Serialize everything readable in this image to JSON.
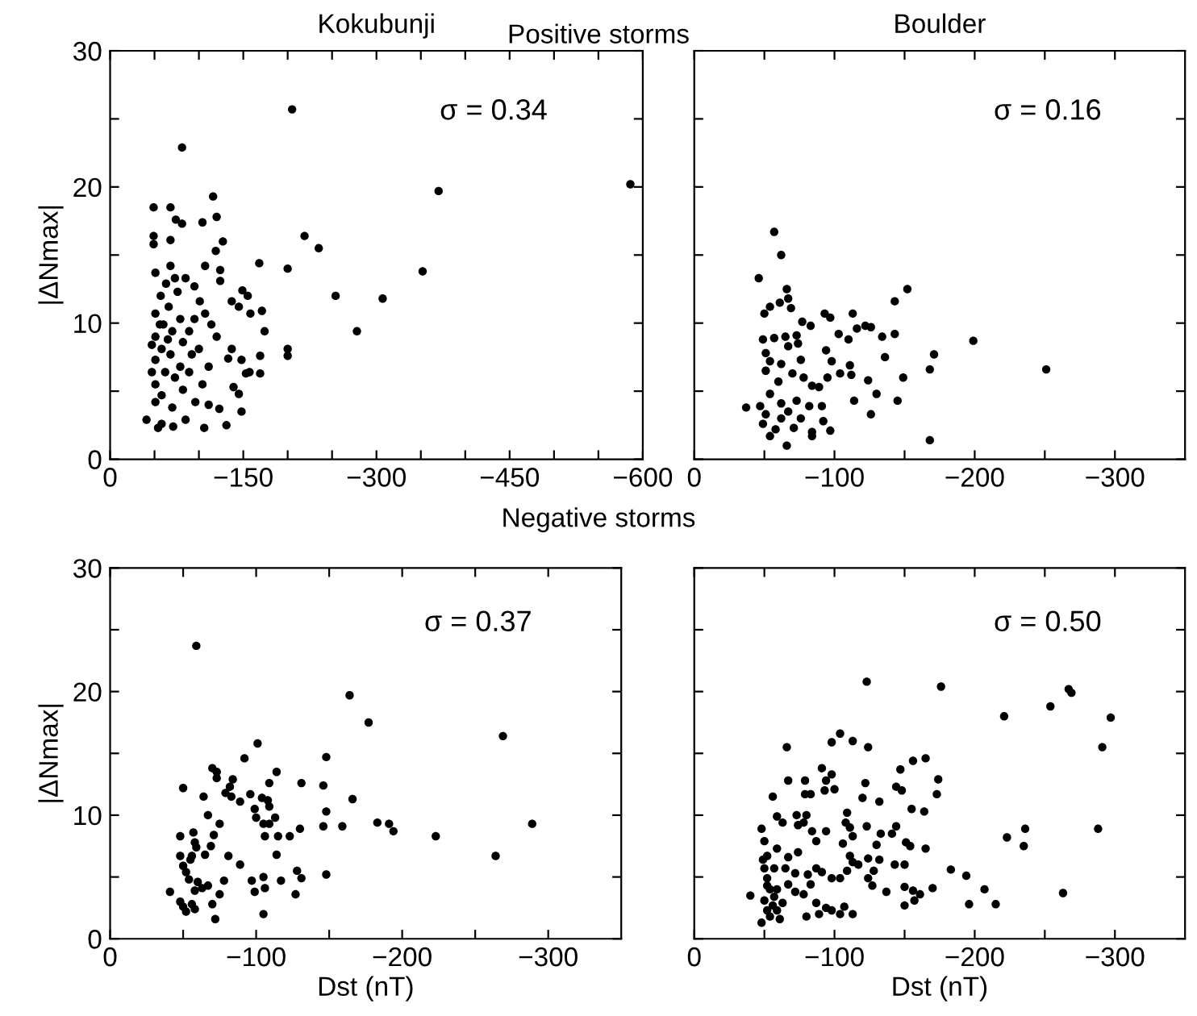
{
  "chart_data": [
    {
      "type": "scatter",
      "title": "Kokubunji",
      "subtitle": "Positive storms",
      "ylabel": "|ΔNmax|",
      "annotations": [
        "σ = 0.34"
      ],
      "marker": "circle",
      "grid": false,
      "legend": false,
      "xlim": [
        0,
        -600
      ],
      "xticks": [
        0,
        {
          "value": -50,
          "label": null
        },
        {
          "value": -100,
          "label": null
        },
        -150,
        {
          "value": -200,
          "label": null
        },
        {
          "value": -250,
          "label": null
        },
        -300,
        {
          "value": -350,
          "label": null
        },
        {
          "value": -400,
          "label": null
        },
        -450,
        {
          "value": -500,
          "label": null
        },
        {
          "value": -550,
          "label": null
        },
        -600
      ],
      "ylim": [
        0,
        30
      ],
      "yticks": [
        0,
        {
          "value": 5,
          "label": null
        },
        10,
        {
          "value": 15,
          "label": null
        },
        20,
        {
          "value": 25,
          "label": null
        },
        30
      ],
      "series": [
        {
          "color": "#000000",
          "x": [
            -205,
            -81,
            -116,
            -49,
            -68,
            -370,
            -586,
            -104,
            -74,
            -81,
            -120,
            -49,
            -49,
            -68,
            -219,
            -235,
            -127,
            -119,
            -168,
            -200,
            -352,
            -107,
            -68,
            -51,
            -254,
            -307,
            -278,
            -200,
            -200,
            -124,
            -124,
            -73,
            -85,
            -95,
            -149,
            -155,
            -137,
            -171,
            -158,
            -145,
            -174,
            -169,
            -169,
            -153,
            -157,
            -148,
            -148,
            -131,
            -106,
            -123,
            -111,
            -139,
            -145,
            -133,
            -137,
            -120,
            -114,
            -107,
            -101,
            -95,
            -89,
            -100,
            -111,
            -104,
            -96,
            -85,
            -71,
            -54,
            -41,
            -58,
            -51,
            -51,
            -51,
            -51,
            -51,
            -57,
            -60,
            -58,
            -62,
            -58,
            -66,
            -70,
            -68,
            -73,
            -70,
            -79,
            -82,
            -79,
            -82,
            -89,
            -92,
            -63,
            -76,
            -47,
            -47,
            -56,
            -65
          ],
          "values": [
            25.7,
            22.9,
            19.3,
            18.5,
            18.5,
            19.7,
            20.2,
            17.4,
            17.6,
            17.3,
            17.8,
            16.4,
            15.8,
            16.1,
            16.4,
            15.5,
            16.0,
            15.3,
            14.4,
            14.0,
            13.8,
            14.2,
            14.2,
            13.7,
            12.0,
            11.8,
            9.4,
            8.1,
            7.6,
            13.9,
            13.1,
            13.3,
            13.3,
            12.7,
            12.4,
            12.0,
            11.6,
            10.9,
            10.7,
            11.2,
            9.4,
            7.6,
            6.3,
            6.3,
            6.4,
            7.3,
            3.5,
            2.5,
            2.3,
            3.7,
            4.0,
            5.3,
            4.8,
            7.4,
            8.1,
            9.0,
            9.9,
            10.7,
            11.6,
            10.3,
            9.4,
            8.1,
            6.8,
            5.5,
            4.2,
            2.9,
            2.4,
            2.3,
            2.9,
            2.6,
            10.7,
            9.0,
            7.3,
            5.5,
            4.2,
            12.0,
            9.9,
            8.1,
            6.4,
            4.7,
            11.2,
            9.4,
            7.7,
            6.0,
            3.8,
            10.3,
            8.6,
            6.8,
            5.1,
            6.4,
            7.7,
            12.9,
            12.3,
            8.4,
            6.4,
            9.9,
            8.8
          ]
        }
      ]
    },
    {
      "type": "scatter",
      "title": "Boulder",
      "annotations": [
        "σ = 0.16"
      ],
      "marker": "circle",
      "grid": false,
      "legend": false,
      "tick_labels": "x",
      "xlim": [
        0,
        -350
      ],
      "xticks": [
        0,
        {
          "value": -50,
          "label": null
        },
        -100,
        {
          "value": -150,
          "label": null
        },
        -200,
        {
          "value": -250,
          "label": null
        },
        -300
      ],
      "ylim": [
        0,
        30
      ],
      "yticks": [
        0,
        {
          "value": 5,
          "label": null
        },
        10,
        {
          "value": 15,
          "label": null
        },
        20,
        {
          "value": 25,
          "label": null
        },
        30
      ],
      "series": [
        {
          "color": "#000000",
          "x": [
            -57,
            -62,
            -46,
            -66,
            -67,
            -152,
            -143,
            -50,
            -54,
            -61,
            -69,
            -93,
            -97,
            -113,
            -83,
            -77,
            -116,
            -122,
            -126,
            -103,
            -110,
            -134,
            -143,
            -49,
            -57,
            -65,
            -73,
            -74,
            -67,
            -94,
            -98,
            -136,
            -171,
            -199,
            -251,
            -168,
            -149,
            -124,
            -112,
            -111,
            -104,
            -95,
            -89,
            -84,
            -78,
            -70,
            -76,
            -62,
            -51,
            -51,
            -54,
            -60,
            -54,
            -47,
            -37,
            -49,
            -58,
            -66,
            -168,
            -145,
            -114,
            -126,
            -130,
            -97,
            -92,
            -84,
            -84,
            -71,
            -76,
            -67,
            -62,
            -73,
            -82,
            -91,
            -62,
            -54,
            -51
          ],
          "values": [
            16.7,
            15.0,
            13.3,
            12.5,
            11.8,
            12.5,
            11.6,
            10.7,
            11.2,
            11.5,
            11.1,
            10.7,
            10.4,
            10.7,
            9.8,
            10.1,
            9.6,
            9.8,
            9.7,
            9.2,
            8.8,
            9.0,
            9.2,
            8.8,
            8.9,
            9.0,
            9.1,
            8.5,
            8.3,
            8.0,
            7.2,
            7.5,
            7.7,
            8.7,
            6.6,
            6.6,
            6.0,
            5.8,
            6.2,
            6.9,
            6.3,
            6.0,
            5.3,
            5.4,
            6.0,
            6.3,
            7.3,
            7.0,
            7.8,
            6.5,
            7.2,
            5.7,
            4.8,
            3.9,
            3.8,
            2.6,
            2.2,
            1.0,
            1.4,
            4.3,
            4.3,
            3.3,
            4.8,
            2.1,
            2.8,
            2.0,
            1.7,
            2.3,
            3.0,
            3.5,
            4.1,
            4.3,
            3.9,
            3.9,
            3.0,
            1.7,
            3.3
          ]
        }
      ]
    },
    {
      "type": "scatter",
      "subtitle": "Negative storms",
      "xlabel": "Dst (nT)",
      "ylabel": "|ΔNmax|",
      "annotations": [
        "σ = 0.37"
      ],
      "marker": "circle",
      "grid": false,
      "legend": false,
      "xlim": [
        0,
        -350
      ],
      "xticks": [
        0,
        {
          "value": -50,
          "label": null
        },
        -100,
        {
          "value": -150,
          "label": null
        },
        -200,
        {
          "value": -250,
          "label": null
        },
        -300
      ],
      "ylim": [
        0,
        30
      ],
      "yticks": [
        0,
        {
          "value": 5,
          "label": null
        },
        10,
        {
          "value": 15,
          "label": null
        },
        20,
        {
          "value": 25,
          "label": null
        },
        30
      ],
      "series": [
        {
          "color": "#000000",
          "x": [
            -59,
            -164,
            -177,
            -269,
            -101,
            -148,
            -92,
            -70,
            -73,
            -73,
            -114,
            -84,
            -82,
            -109,
            -131,
            -146,
            -50,
            -79,
            -89,
            -83,
            -96,
            -104,
            -108,
            -166,
            -99,
            -109,
            -113,
            -100,
            -105,
            -109,
            -67,
            -64,
            -148,
            -146,
            -159,
            -183,
            -191,
            -194,
            -289,
            -223,
            -264,
            -130,
            -123,
            -115,
            -106,
            -75,
            -71,
            -57,
            -48,
            -58,
            -59,
            -56,
            -55,
            -48,
            -50,
            -52,
            -65,
            -69,
            -81,
            -114,
            -89,
            -105,
            -97,
            -128,
            -131,
            -148,
            -117,
            -106,
            -99,
            -127,
            -105,
            -72,
            -70,
            -75,
            -78,
            -67,
            -60,
            -58,
            -54,
            -41,
            -48,
            -50,
            -52,
            -56,
            -58,
            -63
          ],
          "values": [
            23.7,
            19.7,
            17.5,
            16.4,
            15.8,
            14.7,
            14.6,
            13.8,
            13.5,
            13.0,
            13.5,
            12.9,
            12.3,
            12.6,
            12.6,
            12.4,
            12.2,
            11.8,
            11.1,
            11.5,
            11.7,
            11.4,
            11.2,
            11.3,
            10.5,
            10.7,
            9.8,
            9.8,
            9.3,
            9.3,
            10.0,
            11.5,
            10.3,
            9.1,
            9.1,
            9.4,
            9.3,
            8.7,
            9.3,
            8.3,
            6.7,
            8.9,
            8.3,
            8.3,
            8.3,
            9.3,
            8.4,
            8.6,
            8.3,
            7.8,
            7.4,
            6.7,
            6.4,
            6.7,
            5.9,
            5.4,
            6.8,
            7.5,
            6.7,
            6.8,
            6.0,
            5.0,
            4.7,
            5.5,
            4.9,
            5.2,
            4.7,
            4.1,
            3.8,
            3.6,
            2.0,
            1.6,
            2.8,
            3.6,
            4.7,
            4.3,
            4.6,
            3.9,
            4.8,
            3.8,
            3.0,
            2.6,
            2.2,
            2.8,
            2.4,
            4.1
          ]
        }
      ]
    },
    {
      "type": "scatter",
      "xlabel": "Dst (nT)",
      "annotations": [
        "σ = 0.50"
      ],
      "marker": "circle",
      "grid": false,
      "legend": false,
      "tick_labels": "x",
      "xlim": [
        0,
        -350
      ],
      "xticks": [
        0,
        {
          "value": -50,
          "label": null
        },
        -100,
        {
          "value": -150,
          "label": null
        },
        -200,
        {
          "value": -250,
          "label": null
        },
        -300
      ],
      "ylim": [
        0,
        30
      ],
      "yticks": [
        0,
        {
          "value": 5,
          "label": null
        },
        10,
        {
          "value": 15,
          "label": null
        },
        20,
        {
          "value": 25,
          "label": null
        },
        30
      ],
      "series": [
        {
          "color": "#000000",
          "x": [
            -123,
            -176,
            -267,
            -269,
            -254,
            -221,
            -297,
            -291,
            -104,
            -98,
            -113,
            -124,
            -66,
            -165,
            -156,
            -147,
            -91,
            -94,
            -93,
            -98,
            -174,
            -173,
            -122,
            -79,
            -79,
            -67,
            -56,
            -83,
            -100,
            -120,
            -132,
            -144,
            -148,
            -155,
            -164,
            -109,
            -59,
            -63,
            -73,
            -74,
            -80,
            -78,
            -108,
            -111,
            -113,
            -94,
            -84,
            -87,
            -106,
            -123,
            -133,
            -141,
            -144,
            -130,
            -151,
            -165,
            -48,
            -50,
            -52,
            -49,
            -59,
            -67,
            -74,
            -57,
            -65,
            -50,
            -52,
            -72,
            -81,
            -87,
            -91,
            -98,
            -104,
            -109,
            -113,
            -117,
            -111,
            -124,
            -132,
            -143,
            -150,
            -183,
            -194,
            -127,
            -137,
            -150,
            -150,
            -156,
            -157,
            -161,
            -170,
            -154,
            -207,
            -196,
            -215,
            -223,
            -235,
            -236,
            -288,
            -263,
            -40,
            -48,
            -50,
            -52,
            -54,
            -56,
            -57,
            -59,
            -61,
            -63,
            -54,
            -59,
            -52,
            -80,
            -78,
            -87,
            -94,
            -98,
            -104,
            -107,
            -113,
            -89,
            -72,
            -83,
            -67,
            -128,
            -124
          ],
          "values": [
            20.8,
            20.4,
            20.2,
            19.9,
            18.8,
            18.0,
            17.9,
            15.5,
            16.6,
            15.9,
            16.0,
            15.5,
            15.5,
            14.6,
            14.4,
            13.7,
            13.8,
            12.8,
            12.0,
            13.3,
            12.9,
            11.7,
            12.6,
            12.8,
            11.7,
            12.8,
            11.5,
            11.7,
            12.1,
            11.4,
            11.1,
            12.3,
            12.0,
            10.5,
            10.3,
            10.2,
            9.9,
            9.4,
            10.0,
            9.2,
            10.0,
            9.4,
            9.4,
            9.0,
            8.3,
            8.7,
            8.7,
            7.9,
            7.7,
            9.1,
            8.5,
            8.5,
            9.1,
            7.6,
            7.8,
            7.3,
            8.9,
            7.9,
            6.7,
            6.4,
            7.3,
            6.6,
            7.0,
            5.7,
            5.7,
            5.7,
            4.9,
            5.3,
            5.2,
            5.7,
            5.4,
            4.9,
            4.9,
            5.5,
            6.2,
            6.0,
            6.7,
            6.5,
            6.4,
            6.0,
            6.0,
            5.6,
            5.1,
            4.3,
            3.8,
            4.2,
            2.7,
            3.9,
            3.1,
            3.6,
            4.1,
            7.5,
            4.0,
            2.8,
            2.8,
            8.2,
            7.5,
            8.9,
            8.9,
            3.7,
            3.5,
            1.3,
            3.1,
            2.3,
            1.8,
            2.7,
            3.4,
            2.3,
            1.6,
            2.9,
            4.0,
            4.0,
            4.3,
            1.8,
            3.6,
            2.9,
            2.5,
            2.3,
            2.0,
            2.6,
            2.0,
            2.0,
            3.8,
            4.4,
            4.4,
            5.5,
            4.9
          ]
        }
      ]
    }
  ]
}
